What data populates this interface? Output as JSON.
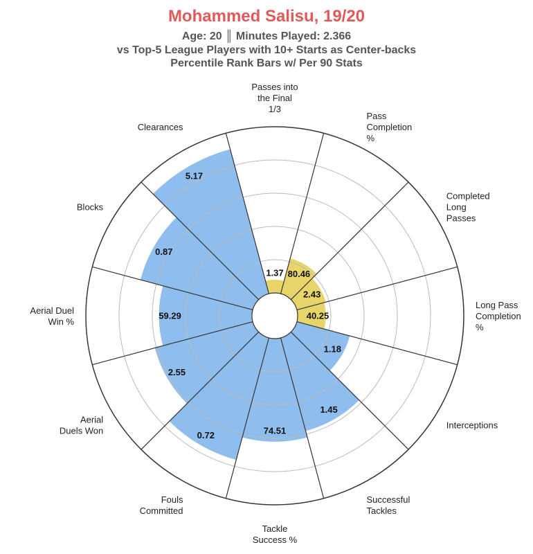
{
  "header": {
    "title": "Mohammed Salisu, 19/20",
    "line1": "Age: 20 ║ Minutes Played: 2.366",
    "line2": "vs Top-5 League Players with 10+ Starts as Center-backs",
    "line3": "Percentile Rank Bars w/ Per 90 Stats"
  },
  "chart_data": {
    "type": "radial-bar",
    "title": "Mohammed Salisu, 19/20",
    "scale": "percentile",
    "rlim": [
      0,
      100
    ],
    "grid": true,
    "colors": {
      "attacking": "#e8d56a",
      "defending": "#8fbeee",
      "grid": "#bbbbbb",
      "spoke": "#333333"
    },
    "categories": [
      {
        "label": [
          "Passes into",
          "the Final",
          "1/3"
        ],
        "value": 1.37,
        "percentile": 8,
        "group": "attacking"
      },
      {
        "label": [
          "Pass",
          "Completion",
          "%"
        ],
        "value": 80.46,
        "percentile": 22,
        "group": "attacking"
      },
      {
        "label": [
          "Completed",
          "Long",
          "Passes"
        ],
        "value": 2.43,
        "percentile": 18,
        "group": "attacking"
      },
      {
        "label": [
          "Long Pass",
          "Completion",
          "%"
        ],
        "value": 40.25,
        "percentile": 17,
        "group": "attacking"
      },
      {
        "label": [
          "Interceptions"
        ],
        "value": 1.18,
        "percentile": 33,
        "group": "defending"
      },
      {
        "label": [
          "Successful",
          "Tackles"
        ],
        "value": 1.45,
        "percentile": 58,
        "group": "defending"
      },
      {
        "label": [
          "Tackle",
          "Success %"
        ],
        "value": 74.51,
        "percentile": 62,
        "group": "defending"
      },
      {
        "label": [
          "Fouls",
          "Committed"
        ],
        "value": 0.72,
        "percentile": 76,
        "group": "defending"
      },
      {
        "label": [
          "Aerial",
          "Duels Won"
        ],
        "value": 2.55,
        "percentile": 61,
        "group": "defending"
      },
      {
        "label": [
          "Aerial Duel",
          "Win %"
        ],
        "value": 59.29,
        "percentile": 56,
        "group": "defending"
      },
      {
        "label": [
          "Blocks"
        ],
        "value": 0.87,
        "percentile": 70,
        "group": "defending"
      },
      {
        "label": [
          "Clearances"
        ],
        "value": 5.17,
        "percentile": 90,
        "group": "defending"
      }
    ]
  }
}
